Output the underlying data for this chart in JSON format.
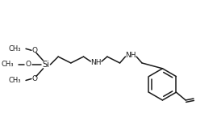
{
  "bg_color": "#ffffff",
  "line_color": "#1a1a1a",
  "lw": 1.1,
  "fs": 6.5,
  "figsize": [
    2.69,
    1.51
  ],
  "dpi": 100,
  "xlim": [
    0,
    269
  ],
  "ylim": [
    0,
    151
  ]
}
